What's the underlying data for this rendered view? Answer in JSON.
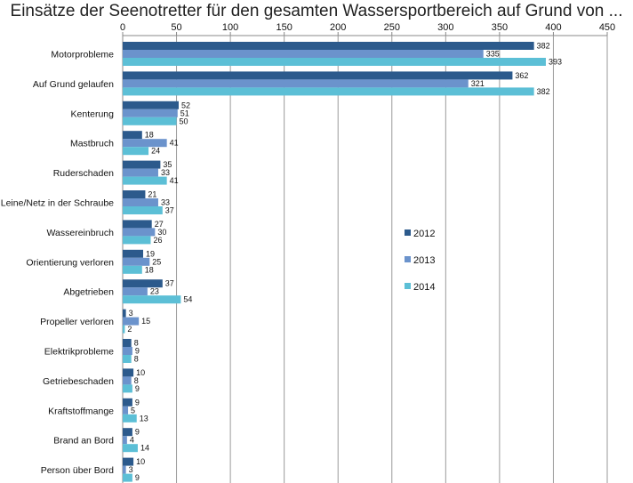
{
  "chart_data": {
    "type": "bar",
    "orientation": "horizontal",
    "title": "Einsätze der Seenotretter für den gesamten Wassersportbereich auf Grund von ...",
    "xlim": [
      0,
      450
    ],
    "xticks": [
      0,
      50,
      100,
      150,
      200,
      250,
      300,
      350,
      400,
      450
    ],
    "grid": "vertical",
    "legend_position": "right",
    "categories": [
      "Motorprobleme",
      "Auf Grund gelaufen",
      "Kenterung",
      "Mastbruch",
      "Ruderschaden",
      "Leine/Netz in der Schraube",
      "Wassereinbruch",
      "Orientierung verloren",
      "Abgetrieben",
      "Propeller verloren",
      "Elektrikprobleme",
      "Getriebeschaden",
      "Kraftstoffmange",
      "Brand an Bord",
      "Person über Bord"
    ],
    "series": [
      {
        "name": "2012",
        "color": "#2c5a8c",
        "values": [
          382,
          362,
          52,
          18,
          35,
          21,
          27,
          19,
          37,
          3,
          8,
          10,
          9,
          9,
          10
        ]
      },
      {
        "name": "2013",
        "color": "#6b93cc",
        "values": [
          335,
          321,
          51,
          41,
          33,
          33,
          30,
          25,
          23,
          15,
          9,
          8,
          5,
          4,
          3
        ]
      },
      {
        "name": "2014",
        "color": "#5cbfd6",
        "values": [
          393,
          382,
          50,
          24,
          41,
          37,
          26,
          18,
          54,
          2,
          8,
          9,
          13,
          14,
          9
        ]
      }
    ]
  }
}
